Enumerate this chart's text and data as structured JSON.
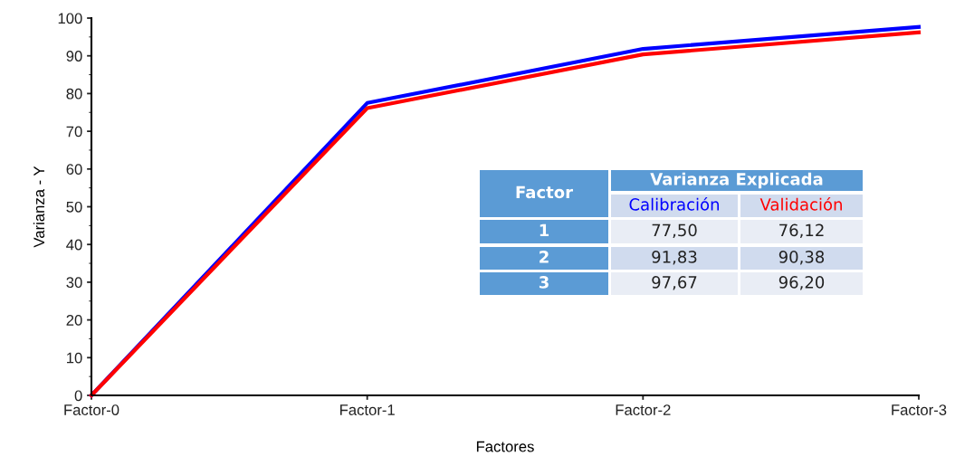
{
  "chart_data": {
    "type": "line",
    "xlabel": "Factores",
    "ylabel": "Varianza - Y",
    "categories": [
      "Factor-0",
      "Factor-1",
      "Factor-2",
      "Factor-3"
    ],
    "series": [
      {
        "name": "Calibración",
        "color": "#0000ff",
        "values": [
          0,
          77.5,
          91.83,
          97.67
        ]
      },
      {
        "name": "Validación",
        "color": "#ff0000",
        "values": [
          0,
          76.12,
          90.38,
          96.2
        ]
      }
    ],
    "annotations": [
      "Factor",
      "Varianza Explicada",
      "1",
      "2",
      "3",
      "77,50",
      "76,12",
      "91,83",
      "90,38",
      "97,67",
      "96,20"
    ],
    "ylim": [
      0,
      100
    ],
    "yticks": [
      0,
      10,
      20,
      30,
      40,
      50,
      60,
      70,
      80,
      90,
      100
    ],
    "grid": false,
    "legend": false,
    "marker": "none",
    "line_style": "solid"
  }
}
